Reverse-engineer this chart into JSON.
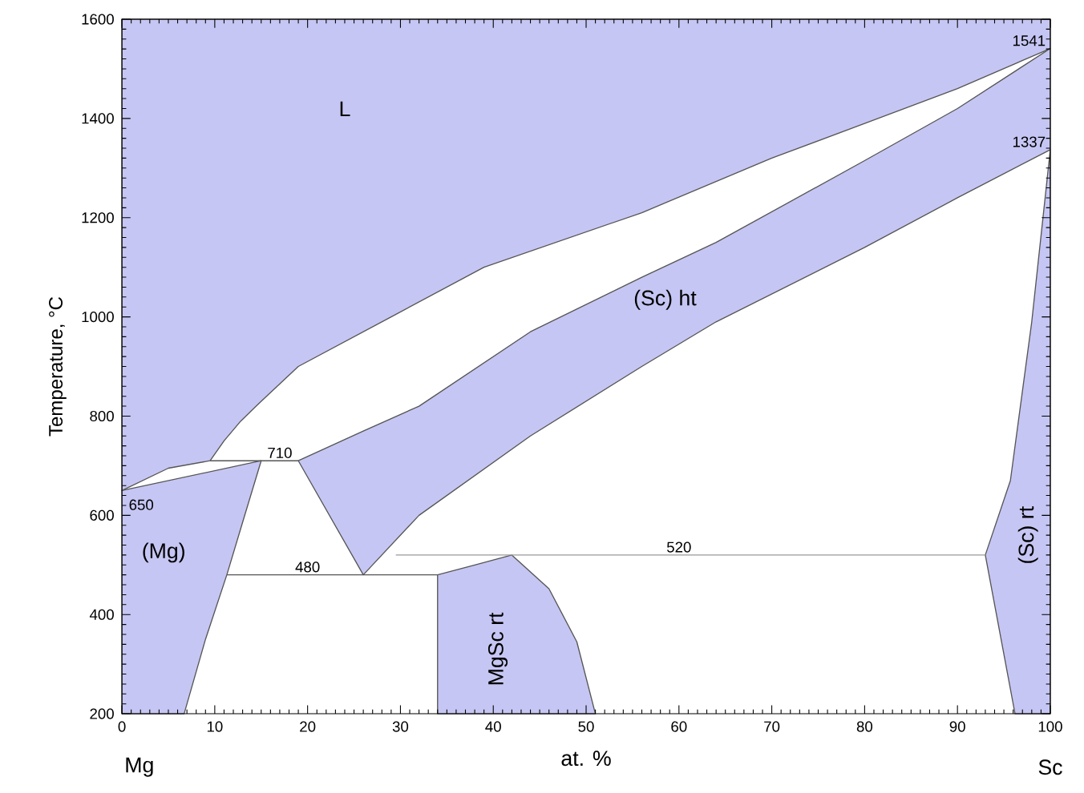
{
  "chart_data": {
    "type": "line",
    "xlabel": "at. %",
    "ylabel": "Temperature, °C",
    "xlim": [
      0,
      100
    ],
    "ylim": [
      200,
      1600
    ],
    "xticks": [
      0,
      10,
      20,
      30,
      40,
      50,
      60,
      70,
      80,
      90,
      100
    ],
    "yticks": [
      200,
      400,
      600,
      800,
      1000,
      1200,
      1400,
      1600
    ],
    "series": [
      {
        "type": "area",
        "color": "#c6c6f4",
        "x": [
          15,
          13,
          11.3,
          9,
          6.7,
          0,
          0,
          15
        ],
        "values": [
          710,
          586,
          480,
          350,
          200,
          200,
          650,
          710
        ]
      },
      {
        "type": "area",
        "color": "#c6c6f4",
        "x": [
          0,
          100,
          100,
          90,
          80,
          70,
          56,
          39,
          29,
          19,
          15,
          12.8,
          11,
          9.5,
          5,
          0,
          0
        ],
        "values": [
          1600,
          1600,
          1541,
          1460,
          1390,
          1320,
          1210,
          1100,
          1000,
          900,
          830,
          790,
          750,
          710,
          695,
          650,
          1600
        ]
      },
      {
        "type": "area",
        "color": "#c6c6f4",
        "x": [
          19,
          26,
          32,
          44,
          56,
          64,
          80,
          90,
          100,
          100,
          90,
          80,
          64,
          56,
          44,
          32,
          26,
          19
        ],
        "values": [
          710,
          770,
          820,
          970,
          1080,
          1150,
          1315,
          1420,
          1541,
          1337,
          1240,
          1140,
          990,
          900,
          760,
          600,
          480,
          710
        ]
      },
      {
        "type": "area",
        "color": "#c6c6f4",
        "x": [
          34,
          34,
          38,
          42,
          46,
          49,
          51,
          34
        ],
        "values": [
          200,
          480,
          500,
          520,
          452,
          345,
          200,
          200
        ]
      },
      {
        "type": "area",
        "color": "#c6c6f4",
        "x": [
          93,
          95.7,
          98,
          100,
          100,
          96.2,
          93
        ],
        "values": [
          520,
          670,
          990,
          1337,
          200,
          200,
          520
        ]
      },
      {
        "color": "#555555",
        "x": [
          9.5,
          19
        ],
        "values": [
          710,
          710
        ]
      },
      {
        "color": "#555555",
        "x": [
          11.3,
          34
        ],
        "values": [
          480,
          480
        ]
      },
      {
        "color": "#999999",
        "x": [
          29.5,
          93
        ],
        "values": [
          520,
          520
        ]
      }
    ],
    "annotations": [
      "L",
      "(Sc) ht",
      "(Mg)",
      "MgSc rt",
      "(Sc) rt",
      {
        "text": "710",
        "x": 17,
        "y": 710
      },
      {
        "text": "650",
        "x": 0,
        "y": 650
      },
      {
        "text": "480",
        "x": 20,
        "y": 480
      },
      {
        "text": "520",
        "x": 60,
        "y": 520
      },
      {
        "text": "1541",
        "x": 100,
        "y": 1541
      },
      {
        "text": "1337",
        "x": 100,
        "y": 1337
      },
      "Mg",
      "Sc"
    ]
  }
}
